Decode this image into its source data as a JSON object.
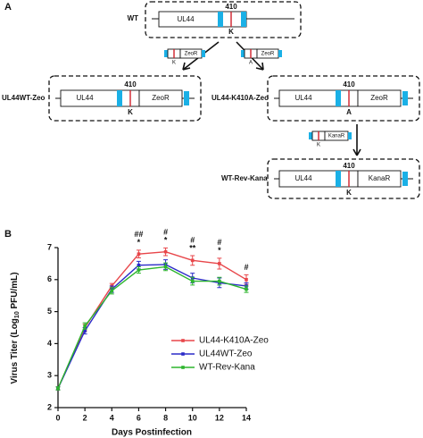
{
  "panel_a": {
    "label": "A",
    "constructs": [
      {
        "name": "WT",
        "gene": "UL44",
        "site": "410",
        "residue": "K"
      },
      {
        "name": "UL44WT-Zeo",
        "gene": "UL44",
        "site": "410",
        "residue": "K",
        "marker": "ZeoR"
      },
      {
        "name": "UL44-K410A-Zeo",
        "gene": "UL44",
        "site": "410",
        "residue": "A",
        "marker": "ZeoR"
      },
      {
        "name": "WT-Rev-Kana",
        "gene": "UL44",
        "site": "410",
        "residue": "K",
        "marker": "KanaR"
      }
    ],
    "cassettes": [
      {
        "residue": "K",
        "marker": "ZeoR"
      },
      {
        "residue": "A",
        "marker": "ZeoR"
      },
      {
        "residue": "K",
        "marker": "KanaR"
      }
    ]
  },
  "chart_data": {
    "type": "line",
    "panel_label": "B",
    "xlabel": "Days Postinfection",
    "ylabel": "Virus Titer (Log",
    "ylabel_sub": "10",
    "ylabel_end": " PFU/mL)",
    "x": [
      0,
      2,
      4,
      6,
      8,
      10,
      12,
      14
    ],
    "xlim": [
      0,
      14
    ],
    "xticks": [
      0,
      2,
      4,
      6,
      8,
      10,
      12,
      14
    ],
    "ylim": [
      2,
      7
    ],
    "yticks": [
      2,
      3,
      4,
      5,
      6,
      7
    ],
    "series": [
      {
        "name": "UL44-K410A-Zeo",
        "color": "#e8464a",
        "values": [
          2.6,
          4.5,
          5.8,
          6.8,
          6.87,
          6.6,
          6.5,
          6.0
        ],
        "errors": [
          0.05,
          0.1,
          0.08,
          0.12,
          0.12,
          0.15,
          0.17,
          0.15
        ]
      },
      {
        "name": "UL44WT-Zeo",
        "color": "#2b2bc8",
        "values": [
          2.6,
          4.4,
          5.7,
          6.45,
          6.47,
          6.05,
          5.9,
          5.8
        ],
        "errors": [
          0.05,
          0.1,
          0.1,
          0.12,
          0.15,
          0.15,
          0.15,
          0.1
        ]
      },
      {
        "name": "WT-Rev-Kana",
        "color": "#2db52d",
        "values": [
          2.6,
          4.55,
          5.65,
          6.3,
          6.4,
          5.95,
          5.95,
          5.7
        ],
        "errors": [
          0.05,
          0.1,
          0.1,
          0.1,
          0.12,
          0.12,
          0.12,
          0.1
        ]
      }
    ],
    "annotations": [
      {
        "x": 6,
        "text": "*",
        "color": "#2b2bc8"
      },
      {
        "x": 6,
        "text": "##",
        "color": "#2db52d"
      },
      {
        "x": 8,
        "text": "*",
        "color": "#2b2bc8"
      },
      {
        "x": 8,
        "text": "#",
        "color": "#2db52d"
      },
      {
        "x": 10,
        "text": "**",
        "color": "#2b2bc8"
      },
      {
        "x": 10,
        "text": "#",
        "color": "#2db52d"
      },
      {
        "x": 12,
        "text": "*",
        "color": "#2b2bc8"
      },
      {
        "x": 12,
        "text": "#",
        "color": "#2db52d"
      },
      {
        "x": 14,
        "text": "#",
        "color": "#2db52d"
      }
    ]
  }
}
